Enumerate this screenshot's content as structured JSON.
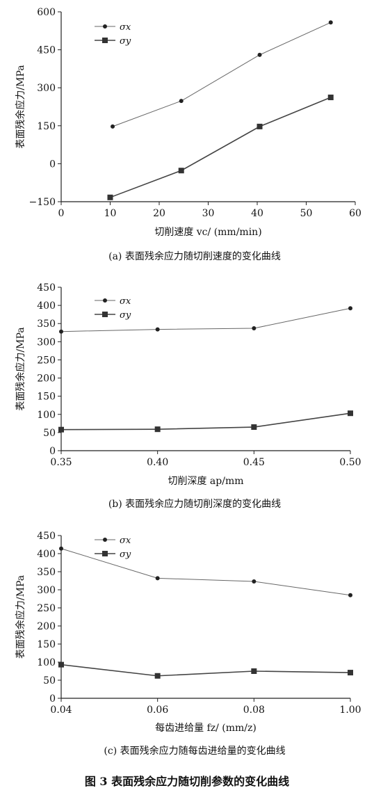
{
  "figure_title": "图 3 表面残余应力随切削参数的变化曲线",
  "chart_data": [
    {
      "type": "line",
      "caption": "(a) 表面残余应力随切削速度的变化曲线",
      "xlabel": "切削速度 vc/ (mm/min)",
      "ylabel": "表面残余应力/MPa",
      "xlim": [
        0,
        60
      ],
      "ylim": [
        -150,
        600
      ],
      "x_ticks": [
        "0",
        "10",
        "20",
        "30",
        "40",
        "50",
        "60"
      ],
      "y_ticks": [
        "600",
        "450",
        "300",
        "150",
        "0",
        "−150"
      ],
      "x": [
        10,
        25,
        40,
        55
      ],
      "series": [
        {
          "name": "σx",
          "marker": "circle",
          "x": [
            10.5,
            24.5,
            40.5,
            55
          ],
          "values": [
            147,
            248,
            430,
            558
          ]
        },
        {
          "name": "σy",
          "marker": "square",
          "x": [
            10,
            24.5,
            40.5,
            55
          ],
          "values": [
            -133,
            -27,
            147,
            262
          ]
        }
      ],
      "legend": "top-left",
      "grid": false
    },
    {
      "type": "line",
      "caption": "(b) 表面残余应力随切削深度的变化曲线",
      "xlabel": "切削深度 ap/mm",
      "ylabel": "表面残余应力/MPa",
      "xlim": [
        0.35,
        0.5
      ],
      "ylim": [
        0,
        450
      ],
      "x_ticks": [
        "0.35",
        "0.40",
        "0.45",
        "0.50"
      ],
      "y_ticks": [
        "450",
        "400",
        "350",
        "300",
        "250",
        "200",
        "150",
        "100",
        "50",
        "0"
      ],
      "x": [
        0.35,
        0.4,
        0.45,
        0.5
      ],
      "series": [
        {
          "name": "σx",
          "marker": "circle",
          "x": [
            0.35,
            0.4,
            0.45,
            0.5
          ],
          "values": [
            328,
            334,
            337,
            392
          ]
        },
        {
          "name": "σy",
          "marker": "square",
          "x": [
            0.35,
            0.4,
            0.45,
            0.5
          ],
          "values": [
            58,
            59,
            65,
            103
          ]
        }
      ],
      "legend": "top-left",
      "grid": false
    },
    {
      "type": "line",
      "caption": "(c) 表面残余应力随每齿进给量的变化曲线",
      "xlabel": "每齿进给量 fz/ (mm/z)",
      "ylabel": "表面残余应力/MPa",
      "xlim": [
        0.04,
        1.0
      ],
      "ylim": [
        0,
        450
      ],
      "x_ticks": [
        "0.04",
        "0.06",
        "0.08",
        "1.00"
      ],
      "y_ticks": [
        "450",
        "400",
        "350",
        "300",
        "250",
        "200",
        "150",
        "100",
        "50",
        "0"
      ],
      "x": [
        "0.04",
        "0.06",
        "0.08",
        "1.00"
      ],
      "series": [
        {
          "name": "σx",
          "marker": "circle",
          "values": [
            414,
            332,
            323,
            285
          ]
        },
        {
          "name": "σy",
          "marker": "square",
          "values": [
            93,
            62,
            75,
            71
          ]
        }
      ],
      "legend": "top-left",
      "grid": false
    }
  ]
}
